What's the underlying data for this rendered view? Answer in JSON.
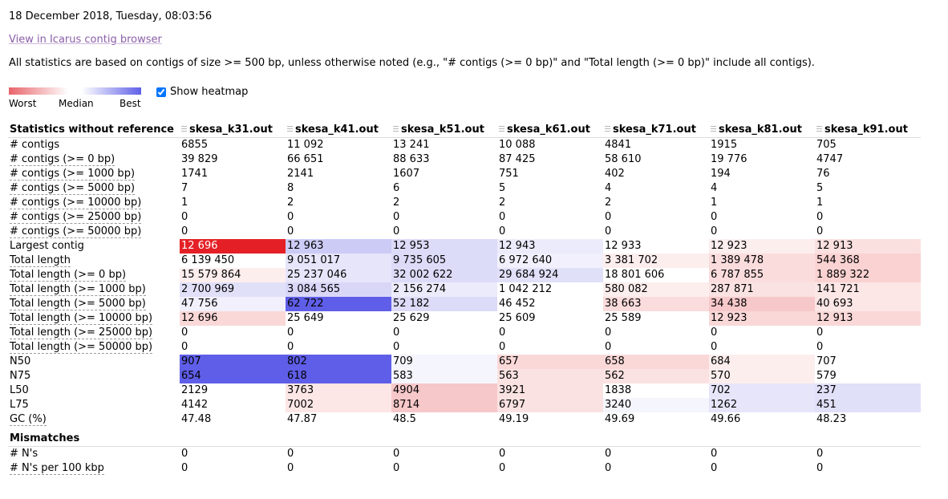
{
  "header": {
    "date": "18 December 2018, Tuesday, 08:03:56",
    "icarus_link": "View in Icarus contig browser",
    "note": "All statistics are based on contigs of size >= 500 bp, unless otherwise noted (e.g., \"# contigs (>= 0 bp)\" and \"Total length (>= 0 bp)\" include all contigs)."
  },
  "heatmap": {
    "worst_label": "Worst",
    "median_label": "Median",
    "best_label": "Best",
    "show_label": "Show heatmap",
    "checked": true,
    "colors": {
      "worst": "#e8646a",
      "median": "#ffffff",
      "best": "#6060e8"
    }
  },
  "table": {
    "header_label": "Statistics without reference",
    "columns": [
      "skesa_k31.out",
      "skesa_k41.out",
      "skesa_k51.out",
      "skesa_k61.out",
      "skesa_k71.out",
      "skesa_k81.out",
      "skesa_k91.out"
    ],
    "rows": [
      {
        "label": "# contigs",
        "values": [
          "6855",
          "11 092",
          "13 241",
          "10 088",
          "4841",
          "1915",
          "705"
        ],
        "colors": [
          "",
          "",
          "",
          "",
          "",
          "",
          ""
        ]
      },
      {
        "label": "# contigs (>= 0 bp)",
        "values": [
          "39 829",
          "66 651",
          "88 633",
          "87 425",
          "58 610",
          "19 776",
          "4747"
        ],
        "colors": [
          "",
          "",
          "",
          "",
          "",
          "",
          ""
        ]
      },
      {
        "label": "# contigs (>= 1000 bp)",
        "values": [
          "1741",
          "2141",
          "1607",
          "751",
          "402",
          "194",
          "76"
        ],
        "colors": [
          "",
          "",
          "",
          "",
          "",
          "",
          ""
        ]
      },
      {
        "label": "# contigs (>= 5000 bp)",
        "values": [
          "7",
          "8",
          "6",
          "5",
          "4",
          "4",
          "5"
        ],
        "colors": [
          "",
          "",
          "",
          "",
          "",
          "",
          ""
        ]
      },
      {
        "label": "# contigs (>= 10000 bp)",
        "values": [
          "1",
          "2",
          "2",
          "2",
          "2",
          "1",
          "1"
        ],
        "colors": [
          "",
          "",
          "",
          "",
          "",
          "",
          ""
        ]
      },
      {
        "label": "# contigs (>= 25000 bp)",
        "values": [
          "0",
          "0",
          "0",
          "0",
          "0",
          "0",
          "0"
        ],
        "colors": [
          "",
          "",
          "",
          "",
          "",
          "",
          ""
        ]
      },
      {
        "label": "# contigs (>= 50000 bp)",
        "values": [
          "0",
          "0",
          "0",
          "0",
          "0",
          "0",
          "0"
        ],
        "colors": [
          "",
          "",
          "",
          "",
          "",
          "",
          ""
        ]
      },
      {
        "label": "Largest contig",
        "values": [
          "12 696",
          "12 963",
          "12 953",
          "12 943",
          "12 933",
          "12 923",
          "12 913"
        ],
        "colors": [
          "#e42026",
          "#cccbf6",
          "#dcdbf8",
          "#ecebfb",
          "#ffffff",
          "#fdeeee",
          "#fbe0e0"
        ],
        "text_colors": [
          "#ffffff",
          "",
          "",
          "",
          "",
          "",
          ""
        ]
      },
      {
        "label": "Total length",
        "values": [
          "6 139 450",
          "9 051 017",
          "9 735 605",
          "6 972 640",
          "3 381 702",
          "1 389 478",
          "544 368"
        ],
        "colors": [
          "#ffffff",
          "#e6e5fa",
          "#dcdbf8",
          "#f1f0fc",
          "#fdeeee",
          "#fbdcdc",
          "#fad2d2"
        ]
      },
      {
        "label": "Total length (>= 0 bp)",
        "values": [
          "15 579 864",
          "25 237 046",
          "32 002 622",
          "29 684 924",
          "18 801 606",
          "6 787 855",
          "1 889 322"
        ],
        "colors": [
          "#fdeeee",
          "#e6e5fa",
          "#dcdbf8",
          "#e1e0f9",
          "#ffffff",
          "#fbdcdc",
          "#fad2d2"
        ]
      },
      {
        "label": "Total length (>= 1000 bp)",
        "values": [
          "2 700 969",
          "3 084 565",
          "2 156 274",
          "1 042 212",
          "580 082",
          "287 871",
          "141 721"
        ],
        "colors": [
          "#e1e0f9",
          "#d8d7f8",
          "#ecebfb",
          "#ffffff",
          "#fdeeee",
          "#fbe2e2",
          "#fce6e6"
        ]
      },
      {
        "label": "Total length (>= 5000 bp)",
        "values": [
          "47 756",
          "62 722",
          "52 182",
          "46 452",
          "38 663",
          "34 438",
          "40 693"
        ],
        "colors": [
          "#f1f0fc",
          "#5f5ee8",
          "#dcdbf8",
          "#ffffff",
          "#fbdcdc",
          "#f7c8ca",
          "#fce6e6"
        ]
      },
      {
        "label": "Total length (>= 10000 bp)",
        "values": [
          "12 696",
          "25 649",
          "25 629",
          "25 609",
          "25 589",
          "12 923",
          "12 913"
        ],
        "colors": [
          "#fad8d8",
          "#ffffff",
          "#ffffff",
          "#ffffff",
          "#ffffff",
          "#fad8d8",
          "#fad8d8"
        ]
      },
      {
        "label": "Total length (>= 25000 bp)",
        "values": [
          "0",
          "0",
          "0",
          "0",
          "0",
          "0",
          "0"
        ],
        "colors": [
          "",
          "",
          "",
          "",
          "",
          "",
          ""
        ]
      },
      {
        "label": "Total length (>= 50000 bp)",
        "values": [
          "0",
          "0",
          "0",
          "0",
          "0",
          "0",
          "0"
        ],
        "colors": [
          "",
          "",
          "",
          "",
          "",
          "",
          ""
        ]
      },
      {
        "label": "N50",
        "values": [
          "907",
          "802",
          "709",
          "657",
          "658",
          "684",
          "707"
        ],
        "colors": [
          "#5f5ee8",
          "#5f5ee8",
          "#f5f5fd",
          "#fad8d8",
          "#fad8d8",
          "#fdeeee",
          "#ffffff"
        ]
      },
      {
        "label": "N75",
        "values": [
          "654",
          "618",
          "583",
          "563",
          "562",
          "570",
          "579"
        ],
        "colors": [
          "#5f5ee8",
          "#5f5ee8",
          "#f5f5fd",
          "#fbe2e2",
          "#fbe2e2",
          "#fdeeee",
          "#ffffff"
        ]
      },
      {
        "label": "L50",
        "values": [
          "2129",
          "3763",
          "4904",
          "3921",
          "1838",
          "702",
          "237"
        ],
        "colors": [
          "#ffffff",
          "#fce6e6",
          "#f7c8ca",
          "#fbe2e2",
          "#ffffff",
          "#e6e5fa",
          "#e1e0f9"
        ]
      },
      {
        "label": "L75",
        "values": [
          "4142",
          "7002",
          "8714",
          "6797",
          "3240",
          "1262",
          "451"
        ],
        "colors": [
          "#ffffff",
          "#fce6e6",
          "#f7c8ca",
          "#fbe2e2",
          "#f5f5fd",
          "#e6e5fa",
          "#e1e0f9"
        ]
      },
      {
        "label": "GC (%)",
        "values": [
          "47.48",
          "47.87",
          "48.5",
          "49.19",
          "49.69",
          "49.66",
          "48.23"
        ],
        "colors": [
          "",
          "",
          "",
          "",
          "",
          "",
          ""
        ]
      }
    ],
    "mismatches": {
      "label": "Mismatches",
      "rows": [
        {
          "label": "# N's",
          "values": [
            "0",
            "0",
            "0",
            "0",
            "0",
            "0",
            "0"
          ]
        },
        {
          "label": "# N's per 100 kbp",
          "values": [
            "0",
            "0",
            "0",
            "0",
            "0",
            "0",
            "0"
          ]
        }
      ]
    }
  }
}
